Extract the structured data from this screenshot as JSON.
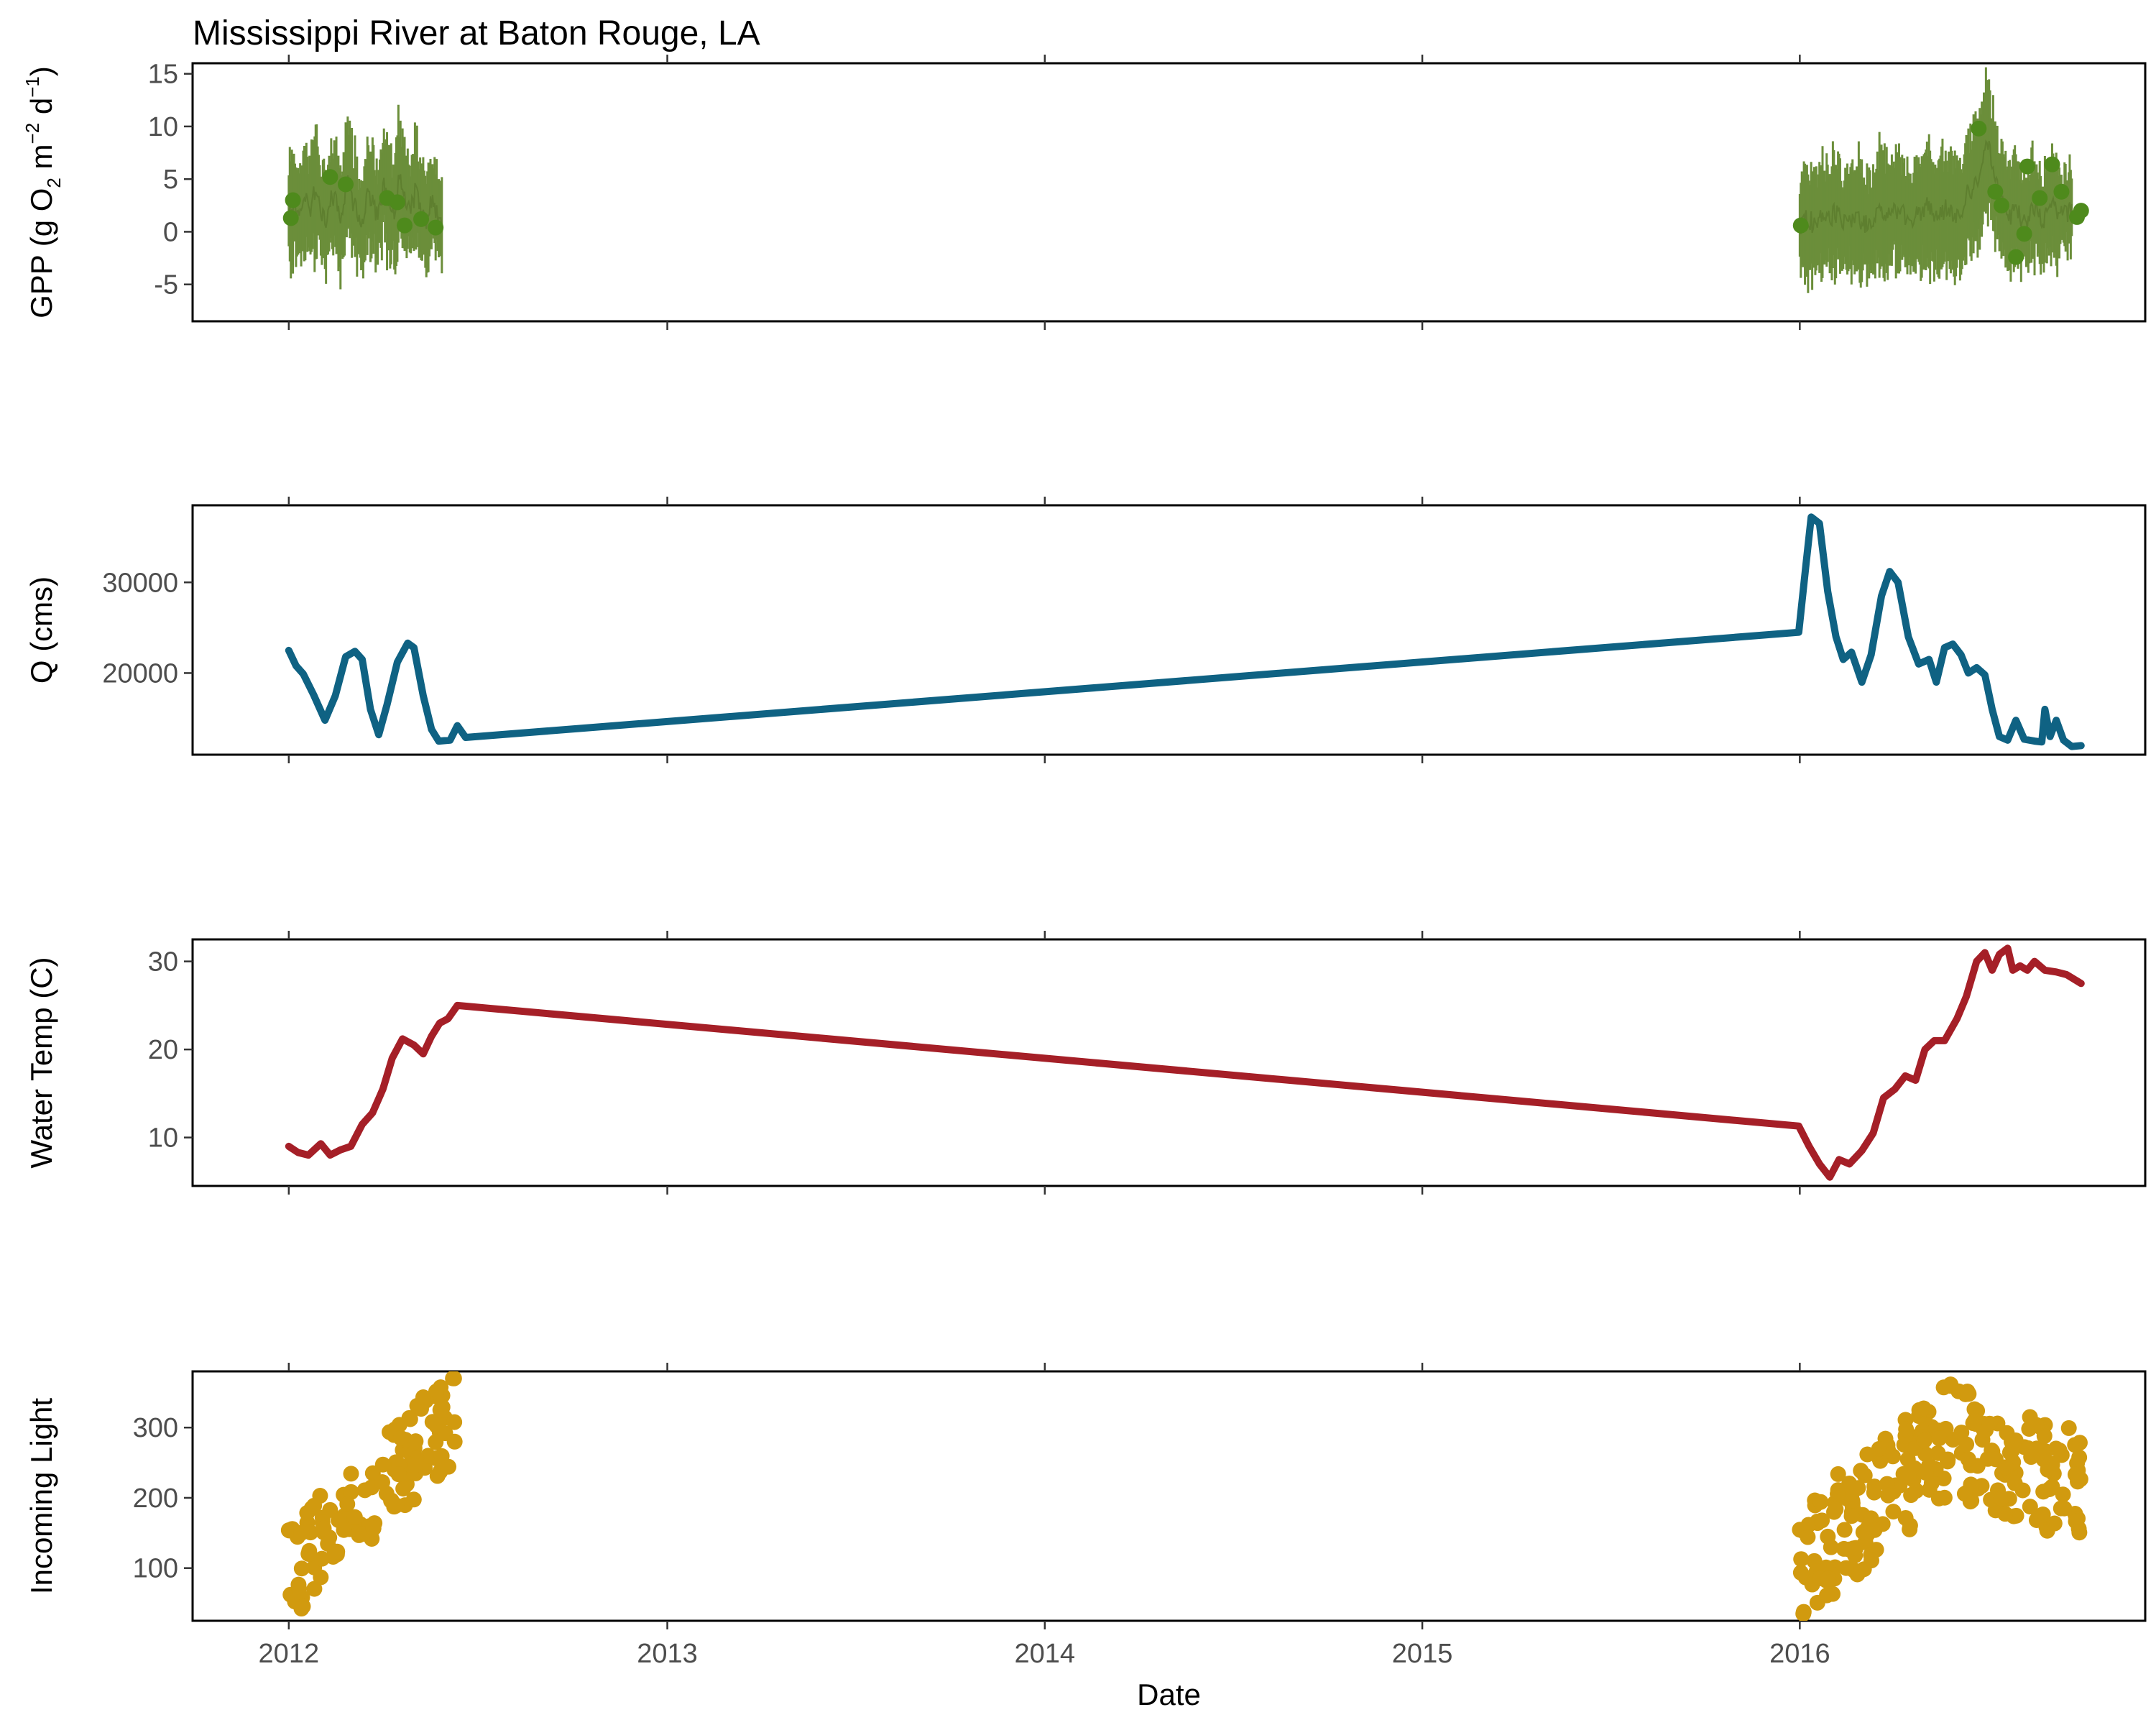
{
  "chart_data": {
    "type": "multi-panel time series",
    "title": "Mississippi River at Baton Rouge, LA",
    "xlabel": "Date",
    "xticks": [
      "2012",
      "2013",
      "2014",
      "2015",
      "2016"
    ],
    "xlim": [
      "2011-09-30",
      "2016-11-30"
    ],
    "panels": [
      {
        "type": "line with points and error bars",
        "ylabel": {
          "lead": "GPP (g  O",
          "o2_sub": "2",
          "mid": " m",
          "m_sup": "−2",
          "d": " d",
          "d_sup": "−1",
          "tail": ")"
        },
        "yticks": [
          -5,
          0,
          5,
          10,
          15
        ],
        "ylim": [
          -8.5,
          16
        ],
        "color": "#6b8e3a",
        "point_color": "#4e8a1c",
        "segments": [
          {
            "start": "2012-01-01",
            "end": "2012-05-28",
            "values": [
              1.5,
              2.8,
              0.9,
              3.2,
              1.8,
              4.1,
              2.2,
              0.6,
              3.5,
              2.9,
              1.2,
              4.8,
              3.1,
              2.0,
              0.8,
              3.9,
              2.6,
              1.4,
              4.2,
              3.3,
              2.1,
              5.2,
              2.7,
              1.9,
              3.8,
              2.4,
              0.7,
              3.0,
              1.6,
              0.3
            ],
            "err": [
              4.5,
              5.0,
              4.8,
              5.5,
              4.2,
              5.8,
              5.1,
              4.6,
              5.3,
              5.7,
              4.9,
              5.9,
              5.2,
              4.7,
              4.4,
              5.6,
              5.0,
              4.3,
              5.4,
              5.8,
              4.9,
              6.0,
              5.3,
              4.8,
              5.5,
              4.6,
              4.2,
              5.1,
              4.4,
              4.0
            ],
            "points": [
              [
                "2012-01-03",
                1.3
              ],
              [
                "2012-01-05",
                3.0
              ],
              [
                "2012-02-10",
                5.2
              ],
              [
                "2012-02-25",
                4.5
              ],
              [
                "2012-04-05",
                3.2
              ],
              [
                "2012-04-15",
                2.8
              ],
              [
                "2012-04-22",
                0.6
              ],
              [
                "2012-05-08",
                1.2
              ],
              [
                "2012-05-22",
                0.4
              ]
            ]
          },
          {
            "start": "2016-01-01",
            "end": "2016-09-20",
            "values": [
              0.5,
              1.2,
              0.8,
              1.5,
              0.9,
              1.8,
              1.1,
              0.6,
              1.4,
              1.0,
              0.7,
              1.6,
              1.9,
              1.3,
              2.2,
              1.5,
              0.9,
              1.7,
              2.4,
              2.0,
              1.1,
              2.6,
              1.8,
              1.3,
              3.5,
              4.2,
              6.0,
              8.5,
              4.8,
              2.8,
              1.2,
              2.5,
              0.5,
              1.8,
              2.2,
              0.9,
              3.0,
              1.5,
              2.0,
              1.8
            ],
            "err": [
              4.8,
              5.2,
              5.0,
              5.5,
              4.9,
              5.4,
              5.1,
              4.7,
              5.6,
              5.0,
              4.8,
              5.3,
              5.7,
              5.1,
              5.6,
              5.4,
              4.9,
              5.2,
              5.8,
              5.5,
              5.0,
              6.0,
              5.5,
              5.2,
              5.9,
              6.0,
              6.3,
              6.5,
              6.0,
              5.5,
              4.9,
              5.3,
              4.6,
              5.0,
              5.2,
              4.5,
              5.0,
              4.2,
              3.8,
              3.5
            ],
            "points": [
              [
                "2016-01-02",
                0.6
              ],
              [
                "2016-06-22",
                9.8
              ],
              [
                "2016-07-08",
                3.8
              ],
              [
                "2016-07-14",
                2.5
              ],
              [
                "2016-07-28",
                -2.4
              ],
              [
                "2016-08-05",
                -0.2
              ],
              [
                "2016-08-08",
                6.2
              ],
              [
                "2016-08-20",
                3.2
              ],
              [
                "2016-09-01",
                6.4
              ],
              [
                "2016-09-10",
                3.8
              ],
              [
                "2016-09-25",
                1.4
              ],
              [
                "2016-09-29",
                2.0
              ]
            ]
          }
        ]
      },
      {
        "type": "line",
        "ylabel": "Q (cms)",
        "yticks": [
          20000,
          30000
        ],
        "ylim": [
          11000,
          38500
        ],
        "color": "#0f6283",
        "points": [
          [
            "2012-01-01",
            22500
          ],
          [
            "2012-01-08",
            20800
          ],
          [
            "2012-01-15",
            19900
          ],
          [
            "2012-01-25",
            17600
          ],
          [
            "2012-02-05",
            14800
          ],
          [
            "2012-02-15",
            17500
          ],
          [
            "2012-02-25",
            21800
          ],
          [
            "2012-03-05",
            22400
          ],
          [
            "2012-03-12",
            21500
          ],
          [
            "2012-03-20",
            16000
          ],
          [
            "2012-03-28",
            13200
          ],
          [
            "2012-04-05",
            16500
          ],
          [
            "2012-04-15",
            21200
          ],
          [
            "2012-04-25",
            23300
          ],
          [
            "2012-05-01",
            22800
          ],
          [
            "2012-05-10",
            17500
          ],
          [
            "2012-05-18",
            13800
          ],
          [
            "2012-05-25",
            12500
          ],
          [
            "2012-06-05",
            12600
          ],
          [
            "2012-06-12",
            14200
          ],
          [
            "2012-06-20",
            12900
          ],
          [
            "2015-12-31",
            24500
          ],
          [
            "2016-01-07",
            32000
          ],
          [
            "2016-01-12",
            37200
          ],
          [
            "2016-01-20",
            36500
          ],
          [
            "2016-01-28",
            29000
          ],
          [
            "2016-02-05",
            24000
          ],
          [
            "2016-02-12",
            21500
          ],
          [
            "2016-02-20",
            22300
          ],
          [
            "2016-03-01",
            19000
          ],
          [
            "2016-03-10",
            22000
          ],
          [
            "2016-03-20",
            28500
          ],
          [
            "2016-03-28",
            31200
          ],
          [
            "2016-04-05",
            30000
          ],
          [
            "2016-04-15",
            24000
          ],
          [
            "2016-04-25",
            21000
          ],
          [
            "2016-05-05",
            21500
          ],
          [
            "2016-05-12",
            19000
          ],
          [
            "2016-05-20",
            22800
          ],
          [
            "2016-05-28",
            23200
          ],
          [
            "2016-06-05",
            22000
          ],
          [
            "2016-06-12",
            20000
          ],
          [
            "2016-06-20",
            20600
          ],
          [
            "2016-06-28",
            19800
          ],
          [
            "2016-07-05",
            16000
          ],
          [
            "2016-07-12",
            13000
          ],
          [
            "2016-07-20",
            12600
          ],
          [
            "2016-07-28",
            14800
          ],
          [
            "2016-08-05",
            12700
          ],
          [
            "2016-08-15",
            12500
          ],
          [
            "2016-08-22",
            12400
          ],
          [
            "2016-08-25",
            16000
          ],
          [
            "2016-08-30",
            13000
          ],
          [
            "2016-09-05",
            14800
          ],
          [
            "2016-09-12",
            12600
          ],
          [
            "2016-09-20",
            11900
          ],
          [
            "2016-09-29",
            12000
          ]
        ]
      },
      {
        "type": "line",
        "ylabel": "Water Temp (C)",
        "yticks": [
          10,
          20,
          30
        ],
        "ylim": [
          4.5,
          32.5
        ],
        "color": "#a51f27",
        "points": [
          [
            "2012-01-01",
            9.0
          ],
          [
            "2012-01-10",
            8.3
          ],
          [
            "2012-01-20",
            8.0
          ],
          [
            "2012-02-01",
            9.3
          ],
          [
            "2012-02-10",
            8.0
          ],
          [
            "2012-02-20",
            8.6
          ],
          [
            "2012-03-01",
            9.0
          ],
          [
            "2012-03-12",
            11.5
          ],
          [
            "2012-03-22",
            12.8
          ],
          [
            "2012-04-01",
            15.5
          ],
          [
            "2012-04-10",
            19.0
          ],
          [
            "2012-04-20",
            21.2
          ],
          [
            "2012-05-01",
            20.5
          ],
          [
            "2012-05-10",
            19.5
          ],
          [
            "2012-05-18",
            21.5
          ],
          [
            "2012-05-26",
            23.0
          ],
          [
            "2012-06-03",
            23.5
          ],
          [
            "2012-06-12",
            25.0
          ],
          [
            "2015-12-31",
            11.3
          ],
          [
            "2016-01-10",
            9.0
          ],
          [
            "2016-01-20",
            7.0
          ],
          [
            "2016-01-30",
            5.5
          ],
          [
            "2016-02-08",
            7.5
          ],
          [
            "2016-02-18",
            7.0
          ],
          [
            "2016-03-01",
            8.5
          ],
          [
            "2016-03-12",
            10.5
          ],
          [
            "2016-03-22",
            14.5
          ],
          [
            "2016-04-02",
            15.5
          ],
          [
            "2016-04-12",
            17.0
          ],
          [
            "2016-04-22",
            16.5
          ],
          [
            "2016-05-01",
            20.0
          ],
          [
            "2016-05-10",
            21.0
          ],
          [
            "2016-05-20",
            21.0
          ],
          [
            "2016-06-01",
            23.5
          ],
          [
            "2016-06-10",
            26.0
          ],
          [
            "2016-06-20",
            30.0
          ],
          [
            "2016-06-28",
            31.0
          ],
          [
            "2016-07-05",
            29.0
          ],
          [
            "2016-07-12",
            30.8
          ],
          [
            "2016-07-20",
            31.5
          ],
          [
            "2016-07-25",
            29.0
          ],
          [
            "2016-08-01",
            29.5
          ],
          [
            "2016-08-08",
            29.0
          ],
          [
            "2016-08-15",
            30.0
          ],
          [
            "2016-08-25",
            29.0
          ],
          [
            "2016-09-05",
            28.8
          ],
          [
            "2016-09-15",
            28.5
          ],
          [
            "2016-09-29",
            27.5
          ]
        ]
      },
      {
        "type": "scatter",
        "ylabel": "Incoming Light",
        "yticks": [
          100,
          200,
          300
        ],
        "ylim": [
          25,
          380
        ],
        "color": "#d19a0f",
        "segments": [
          {
            "start": "2012-01-01",
            "end": "2012-06-10",
            "y_start": 95,
            "y_end": 320,
            "spread": 70,
            "n": 120,
            "seed": 7
          },
          {
            "start": "2016-01-01",
            "end": "2016-09-29",
            "y_start": 110,
            "y_peak": 285,
            "peak_frac": 0.55,
            "y_end": 210,
            "spread": 85,
            "n": 240,
            "seed": 21
          }
        ]
      }
    ]
  }
}
